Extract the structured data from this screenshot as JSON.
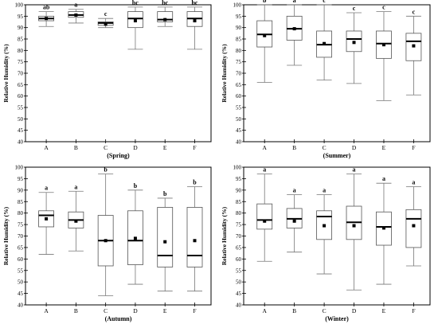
{
  "chart_data": [
    {
      "type": "box",
      "xlabel": "(Spring)",
      "ylabel": "Relative Humidity (%)",
      "ylim": [
        40,
        100
      ],
      "yticks": [
        40,
        45,
        50,
        55,
        60,
        65,
        70,
        75,
        80,
        85,
        90,
        95,
        100
      ],
      "categories": [
        "A",
        "B",
        "C",
        "D",
        "E",
        "F"
      ],
      "boxes": [
        {
          "min": 90.5,
          "q1": 93,
          "median": 94,
          "q3": 95,
          "max": 97,
          "mean": 94,
          "letter": "ab"
        },
        {
          "min": 92,
          "q1": 94.5,
          "median": 95.5,
          "q3": 97,
          "max": 98,
          "mean": 95.5,
          "letter": "a"
        },
        {
          "min": 90,
          "q1": 91,
          "median": 92,
          "q3": 92.5,
          "max": 94,
          "mean": 91.5,
          "letter": "c"
        },
        {
          "min": 80.5,
          "q1": 90,
          "median": 94,
          "q3": 97,
          "max": 99,
          "mean": 93,
          "letter": "bc"
        },
        {
          "min": 90.5,
          "q1": 92.5,
          "median": 93.5,
          "q3": 97,
          "max": 99,
          "mean": 93.5,
          "letter": "bc"
        },
        {
          "min": 80.5,
          "q1": 90.5,
          "median": 94,
          "q3": 97,
          "max": 99,
          "mean": 93,
          "letter": "bc"
        }
      ]
    },
    {
      "type": "box",
      "xlabel": "(Summer)",
      "ylabel": "Relative Humidity (%)",
      "ylim": [
        40,
        100
      ],
      "yticks": [
        40,
        45,
        50,
        55,
        60,
        65,
        70,
        75,
        80,
        85,
        90,
        95,
        100
      ],
      "categories": [
        "A",
        "B",
        "C",
        "D",
        "E",
        "F"
      ],
      "boxes": [
        {
          "min": 66,
          "q1": 81.5,
          "median": 87,
          "q3": 93,
          "max": 100,
          "mean": 86.5,
          "letter": "b"
        },
        {
          "min": 73.5,
          "q1": 84.5,
          "median": 89.5,
          "q3": 95,
          "max": 100,
          "mean": 89.5,
          "letter": "a"
        },
        {
          "min": 67,
          "q1": 77,
          "median": 82.5,
          "q3": 88.5,
          "max": 100,
          "mean": 83,
          "letter": "c"
        },
        {
          "min": 65.5,
          "q1": 79.5,
          "median": 85,
          "q3": 88.5,
          "max": 96.5,
          "mean": 83.5,
          "letter": "c"
        },
        {
          "min": 58,
          "q1": 76.5,
          "median": 83,
          "q3": 88.5,
          "max": 97,
          "mean": 82.5,
          "letter": "c"
        },
        {
          "min": 60.5,
          "q1": 75.5,
          "median": 84,
          "q3": 87.5,
          "max": 95,
          "mean": 82,
          "letter": "c"
        }
      ]
    },
    {
      "type": "box",
      "xlabel": "(Autumn)",
      "ylabel": "Relative Humidity (%)",
      "ylim": [
        40,
        100
      ],
      "yticks": [
        40,
        45,
        50,
        55,
        60,
        65,
        70,
        75,
        80,
        85,
        90,
        95,
        100
      ],
      "categories": [
        "A",
        "B",
        "C",
        "D",
        "E",
        "F"
      ],
      "boxes": [
        {
          "min": 62,
          "q1": 74,
          "median": 79,
          "q3": 81,
          "max": 89,
          "mean": 77.5,
          "letter": "a"
        },
        {
          "min": 63.5,
          "q1": 73.5,
          "median": 77,
          "q3": 80.5,
          "max": 89.5,
          "mean": 76.5,
          "letter": "a"
        },
        {
          "min": 44,
          "q1": 57,
          "median": 68,
          "q3": 79,
          "max": 97,
          "mean": 68,
          "letter": "b"
        },
        {
          "min": 49,
          "q1": 57.5,
          "median": 68,
          "q3": 81,
          "max": 90,
          "mean": 69,
          "letter": "b"
        },
        {
          "min": 46,
          "q1": 56.5,
          "median": 61.5,
          "q3": 82.5,
          "max": 86.5,
          "mean": 67.5,
          "letter": "b"
        },
        {
          "min": 46,
          "q1": 56.5,
          "median": 61.5,
          "q3": 82.5,
          "max": 91.5,
          "mean": 68,
          "letter": "b"
        }
      ]
    },
    {
      "type": "box",
      "xlabel": "(Winter)",
      "ylabel": "Relative Humidity (%)",
      "ylim": [
        40,
        100
      ],
      "yticks": [
        40,
        45,
        50,
        55,
        60,
        65,
        70,
        75,
        80,
        85,
        90,
        95,
        100
      ],
      "categories": [
        "A",
        "B",
        "C",
        "D",
        "E",
        "F"
      ],
      "boxes": [
        {
          "min": 59,
          "q1": 73,
          "median": 77,
          "q3": 84,
          "max": 97,
          "mean": 76.5,
          "letter": "a"
        },
        {
          "min": 63,
          "q1": 73.5,
          "median": 77.5,
          "q3": 82,
          "max": 88,
          "mean": 76.5,
          "letter": "a"
        },
        {
          "min": 53.5,
          "q1": 68.5,
          "median": 78.5,
          "q3": 81,
          "max": 88,
          "mean": 74.5,
          "letter": "a"
        },
        {
          "min": 46.5,
          "q1": 68.5,
          "median": 76,
          "q3": 83,
          "max": 97,
          "mean": 74.5,
          "letter": "a"
        },
        {
          "min": 49,
          "q1": 66,
          "median": 74,
          "q3": 80.5,
          "max": 93,
          "mean": 73.5,
          "letter": "a"
        },
        {
          "min": 57,
          "q1": 65,
          "median": 77.5,
          "q3": 81.5,
          "max": 91.5,
          "mean": 74.5,
          "letter": "a"
        }
      ]
    }
  ]
}
